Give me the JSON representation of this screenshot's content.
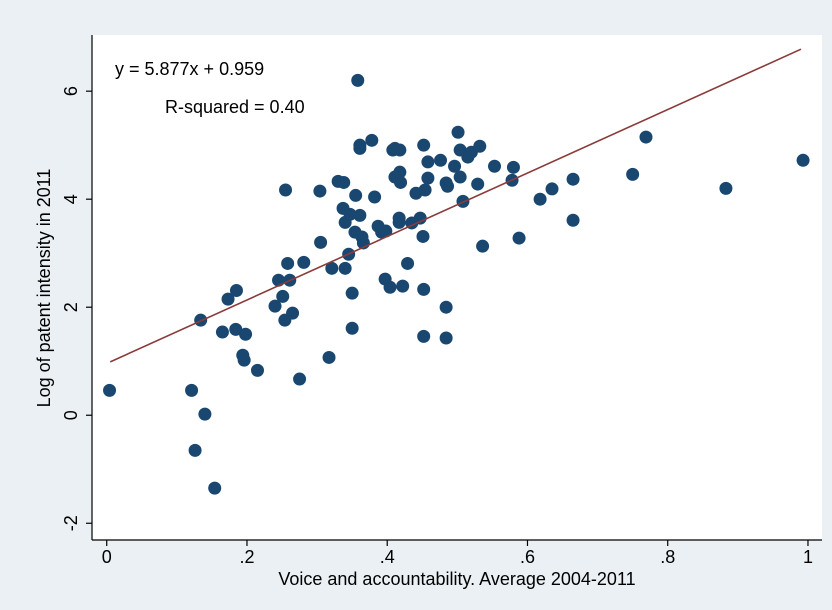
{
  "chart_data": {
    "type": "scatter",
    "x_label": "Voice and accountability. Average 2004-2011",
    "y_label": "Log of patent intensity in 2011",
    "annotations": [
      "y = 5.877x + 0.959",
      "R-squared = 0.40"
    ],
    "xlim": [
      -0.021,
      1.02
    ],
    "ylim": [
      -2.31,
      7.04
    ],
    "xticks": [
      0,
      {
        "value": 0.2,
        "label": ".2"
      },
      {
        "value": 0.4,
        "label": ".4"
      },
      {
        "value": 0.6,
        "label": ".6"
      },
      {
        "value": 0.8,
        "label": ".8"
      },
      1
    ],
    "yticks": [
      -2,
      0,
      2,
      4,
      6
    ],
    "grid": false,
    "color": "#1a476f",
    "x": [
      0.004,
      0.121,
      0.126,
      0.154,
      0.134,
      0.14,
      0.173,
      0.185,
      0.165,
      0.184,
      0.198,
      0.194,
      0.196,
      0.215,
      0.24,
      0.245,
      0.251,
      0.254,
      0.255,
      0.258,
      0.261,
      0.265,
      0.275,
      0.281,
      0.304,
      0.305,
      0.317,
      0.321,
      0.33,
      0.338,
      0.337,
      0.34,
      0.34,
      0.345,
      0.347,
      0.35,
      0.35,
      0.355,
      0.354,
      0.358,
      0.361,
      0.361,
      0.361,
      0.364,
      0.366,
      0.378,
      0.382,
      0.387,
      0.392,
      0.398,
      0.397,
      0.404,
      0.408,
      0.411,
      0.418,
      0.411,
      0.418,
      0.419,
      0.417,
      0.417,
      0.422,
      0.429,
      0.435,
      0.441,
      0.447,
      0.451,
      0.452,
      0.452,
      0.452,
      0.458,
      0.458,
      0.454,
      0.476,
      0.484,
      0.486,
      0.484,
      0.484,
      0.496,
      0.501,
      0.504,
      0.504,
      0.508,
      0.515,
      0.52,
      0.529,
      0.532,
      0.536,
      0.553,
      0.578,
      0.58,
      0.588,
      0.618,
      0.635,
      0.665,
      0.665,
      0.75,
      0.769,
      0.883,
      0.993
    ],
    "values": [
      0.46,
      0.46,
      -0.65,
      -1.35,
      1.76,
      0.02,
      2.15,
      2.31,
      1.54,
      1.59,
      1.5,
      1.11,
      1.02,
      0.83,
      2.02,
      2.5,
      2.2,
      1.76,
      4.17,
      2.81,
      2.5,
      1.89,
      0.67,
      2.83,
      4.15,
      3.2,
      1.07,
      2.72,
      4.33,
      4.31,
      3.83,
      3.57,
      2.72,
      2.98,
      3.72,
      2.26,
      1.61,
      4.07,
      3.39,
      6.2,
      5.0,
      4.94,
      3.7,
      3.3,
      3.19,
      5.09,
      4.04,
      3.5,
      3.39,
      3.41,
      2.52,
      2.37,
      4.91,
      4.94,
      4.91,
      4.41,
      4.5,
      4.31,
      3.65,
      3.57,
      2.39,
      2.81,
      3.56,
      4.11,
      3.65,
      3.31,
      5.0,
      2.33,
      1.46,
      4.69,
      4.39,
      4.17,
      4.72,
      4.3,
      4.24,
      2.0,
      1.43,
      4.61,
      5.24,
      4.91,
      4.41,
      3.96,
      4.78,
      4.87,
      4.28,
      4.98,
      3.13,
      4.61,
      4.35,
      4.59,
      3.28,
      4.0,
      4.19,
      4.37,
      3.61,
      4.46,
      5.15,
      4.2,
      4.72
    ],
    "fit_line": {
      "x": [
        0.005,
        0.99
      ],
      "values": [
        0.988,
        6.777
      ],
      "color": "#8b3a3a"
    }
  }
}
